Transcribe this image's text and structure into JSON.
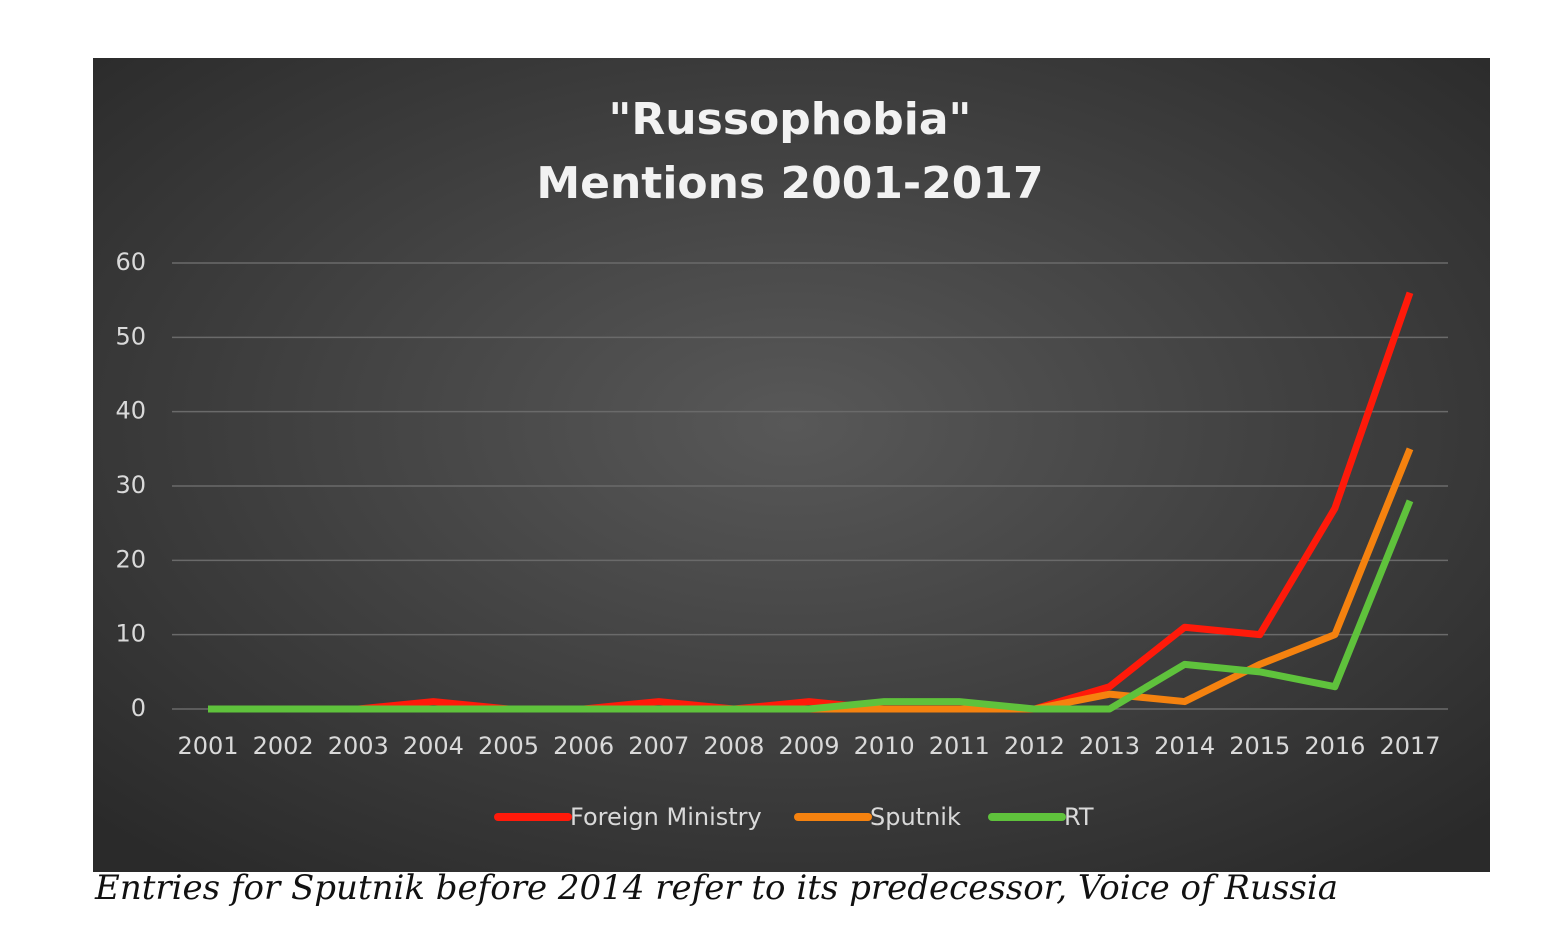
{
  "chart_data": {
    "type": "line",
    "title": [
      "\"Russophobia\"",
      "Mentions 2001-2017"
    ],
    "categories": [
      "2001",
      "2002",
      "2003",
      "2004",
      "2005",
      "2006",
      "2007",
      "2008",
      "2009",
      "2010",
      "2011",
      "2012",
      "2013",
      "2014",
      "2015",
      "2016",
      "2017"
    ],
    "series": [
      {
        "name": "Foreign Ministry",
        "color": "#ff1a0a",
        "values": [
          0,
          0,
          0,
          1,
          0,
          0,
          1,
          0,
          1,
          0,
          0,
          0,
          3,
          11,
          10,
          27,
          56
        ]
      },
      {
        "name": "Sputnik",
        "color": "#f5820f",
        "values": [
          0,
          0,
          0,
          0,
          0,
          0,
          0,
          0,
          0,
          0,
          0,
          0,
          2,
          1,
          6,
          10,
          35
        ]
      },
      {
        "name": "RT",
        "color": "#5fc23c",
        "values": [
          0,
          0,
          0,
          0,
          0,
          0,
          0,
          0,
          0,
          1,
          1,
          0,
          0,
          6,
          5,
          3,
          28
        ]
      }
    ],
    "ylim": [
      0,
      60
    ],
    "yticks": [
      0,
      10,
      20,
      30,
      40,
      50,
      60
    ],
    "grid": true,
    "legend": "bottom"
  },
  "caption": "Entries for Sputnik before 2014 refer to its predecessor, Voice of Russia"
}
